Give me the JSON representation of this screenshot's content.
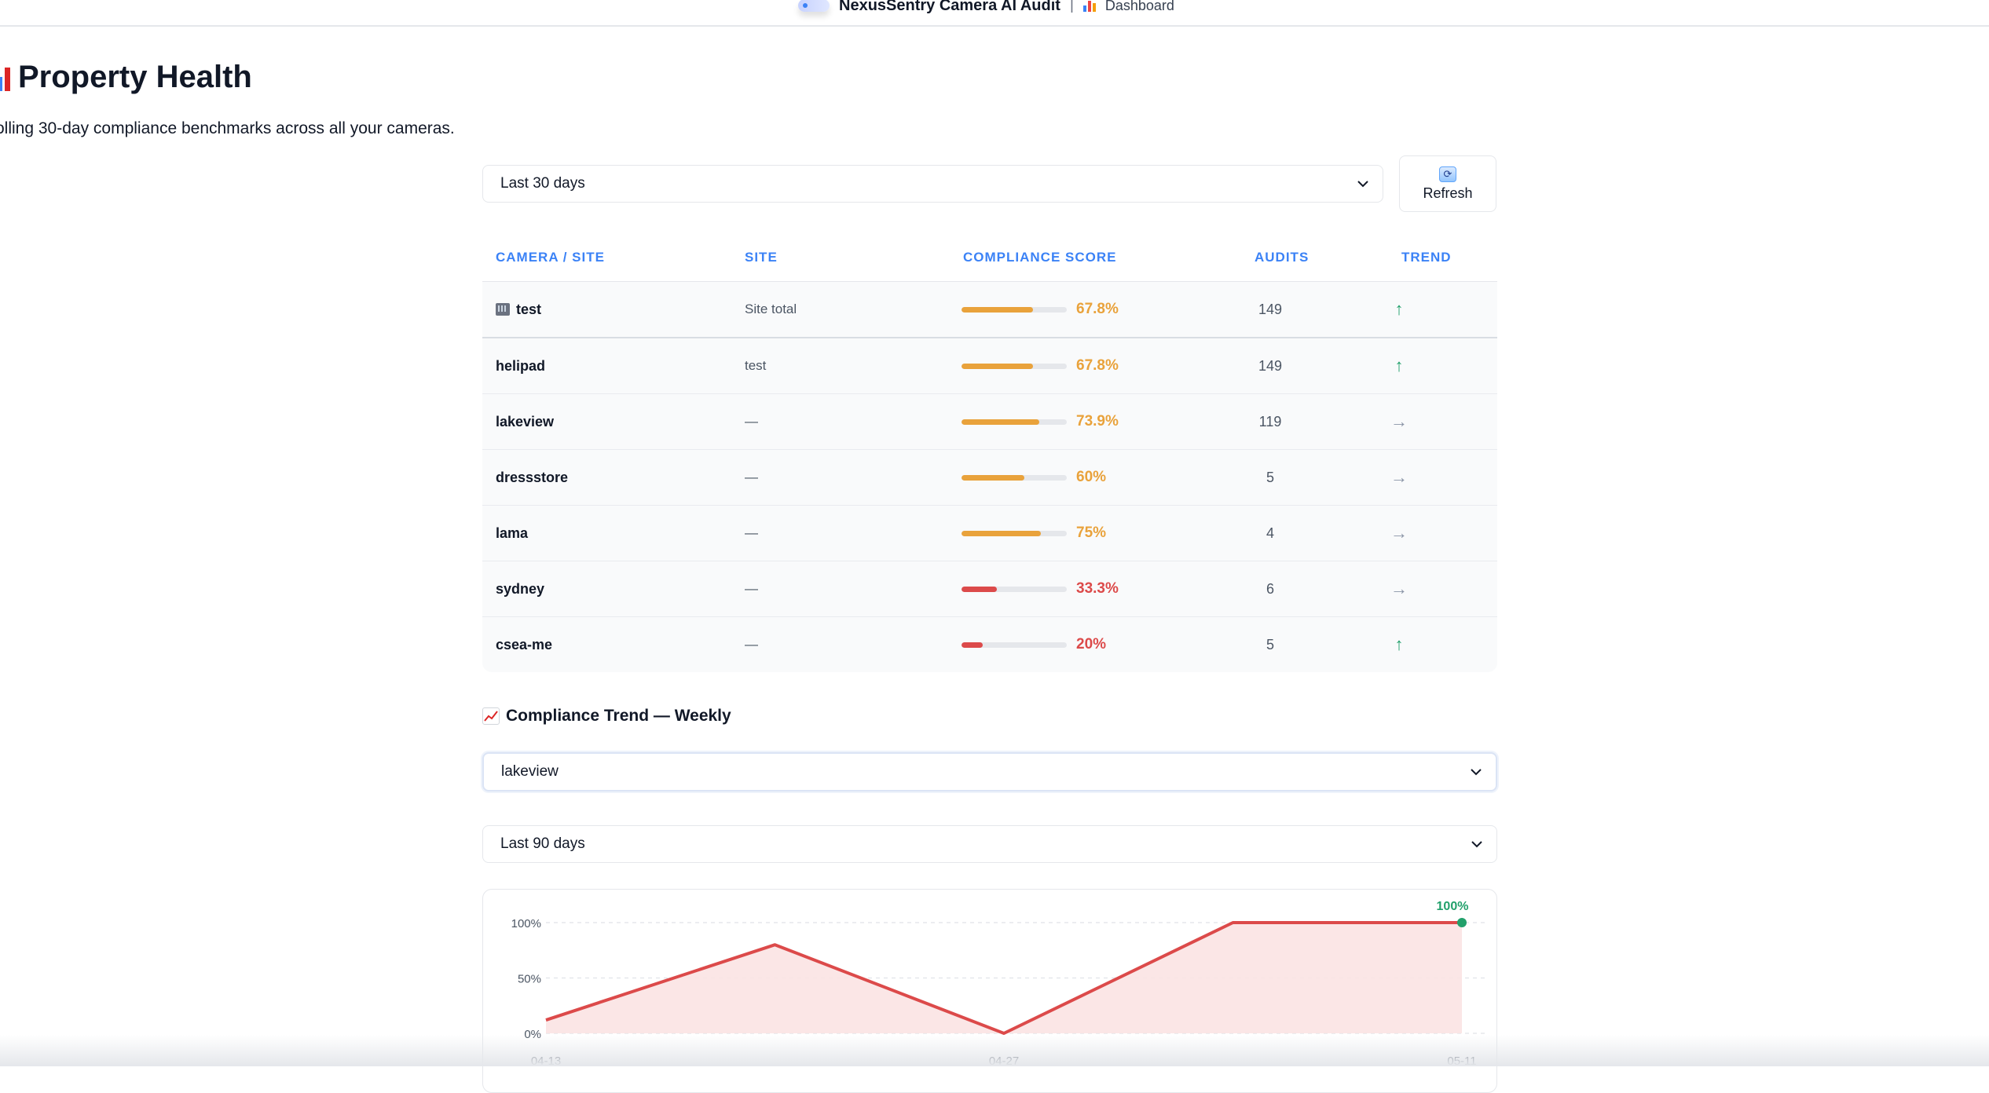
{
  "topbar": {
    "app_name": "NexusSentry Camera AI Audit",
    "separator": "|",
    "breadcrumb": "Dashboard"
  },
  "header": {
    "title": "Property Health",
    "subtitle": "olling 30-day compliance benchmarks across all your cameras."
  },
  "filters": {
    "period": "Last 30 days",
    "refresh_label": "Refresh"
  },
  "table": {
    "columns": [
      "CAMERA / SITE",
      "SITE",
      "COMPLIANCE SCORE",
      "AUDITS",
      "TREND"
    ],
    "rows": [
      {
        "camera": "test",
        "site": "Site total",
        "score": "67.8%",
        "score_value": 67.8,
        "level": "warn",
        "audits": "149",
        "trend": "↑",
        "trend_dir": "up",
        "is_site": true
      },
      {
        "camera": "helipad",
        "site": "test",
        "score": "67.8%",
        "score_value": 67.8,
        "level": "warn",
        "audits": "149",
        "trend": "↑",
        "trend_dir": "up"
      },
      {
        "camera": "lakeview",
        "site": "—",
        "score": "73.9%",
        "score_value": 73.9,
        "level": "warn",
        "audits": "119",
        "trend": "→",
        "trend_dir": "flat"
      },
      {
        "camera": "dressstore",
        "site": "—",
        "score": "60%",
        "score_value": 60,
        "level": "warn",
        "audits": "5",
        "trend": "→",
        "trend_dir": "flat"
      },
      {
        "camera": "lama",
        "site": "—",
        "score": "75%",
        "score_value": 75,
        "level": "warn",
        "audits": "4",
        "trend": "→",
        "trend_dir": "flat"
      },
      {
        "camera": "sydney",
        "site": "—",
        "score": "33.3%",
        "score_value": 33.3,
        "level": "bad",
        "audits": "6",
        "trend": "→",
        "trend_dir": "flat"
      },
      {
        "camera": "csea-me",
        "site": "—",
        "score": "20%",
        "score_value": 20,
        "level": "bad",
        "audits": "5",
        "trend": "↑",
        "trend_dir": "up"
      }
    ]
  },
  "trend_section": {
    "title": "Compliance Trend — Weekly",
    "camera": "lakeview",
    "period": "Last 90 days"
  },
  "colors": {
    "accent": "#3b82f6",
    "warn": "#e9a23b",
    "bad": "#dc4a4a",
    "good": "#22a06b",
    "flat": "#8a94a6",
    "line": "#dc4a4a",
    "area": "#fbe3e3"
  },
  "chart_data": {
    "type": "area",
    "x": [
      "04-13",
      "04-20",
      "04-27",
      "05-04",
      "05-11"
    ],
    "values": [
      12,
      80,
      0,
      100,
      100
    ],
    "ylim": [
      0,
      100
    ],
    "y_ticks": [
      "0%",
      "50%",
      "100%"
    ],
    "x_tick_labels": [
      "04-13",
      "04-27",
      "05-11"
    ],
    "last_point_label": "100%",
    "grid": true
  }
}
